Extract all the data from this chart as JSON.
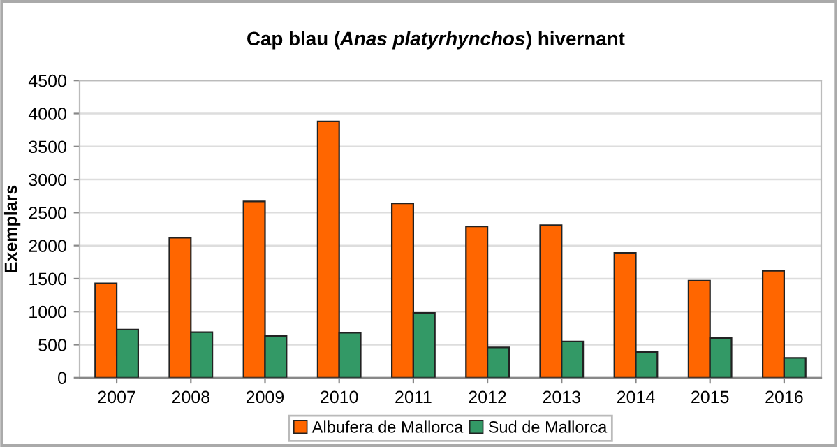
{
  "chart_data": {
    "type": "bar",
    "title": "Cap blau (Anas platyrhynchos) hivernant",
    "ylabel": "Exemplars",
    "categories": [
      "2007",
      "2008",
      "2009",
      "2010",
      "2011",
      "2012",
      "2013",
      "2014",
      "2015",
      "2016"
    ],
    "series": [
      {
        "name": "Albufera de Mallorca",
        "color": "#ff6600",
        "values": [
          1430,
          2120,
          2670,
          3880,
          2640,
          2290,
          2310,
          1890,
          1470,
          1620
        ]
      },
      {
        "name": "Sud de Mallorca",
        "color": "#339966",
        "values": [
          730,
          690,
          630,
          680,
          980,
          460,
          550,
          390,
          600,
          300
        ]
      }
    ],
    "ylim": [
      0,
      4500
    ],
    "yticks": [
      0,
      500,
      1000,
      1500,
      2000,
      2500,
      3000,
      3500,
      4000,
      4500
    ],
    "grid": "y",
    "legend": "bottom"
  }
}
